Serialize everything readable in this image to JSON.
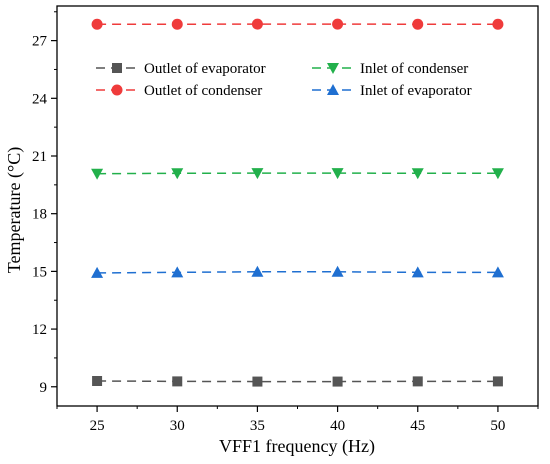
{
  "chart_data": {
    "type": "line",
    "title": "",
    "xlabel": "VFF1 frequency (Hz)",
    "ylabel": "Temperature (°C)",
    "x": [
      25,
      30,
      35,
      40,
      45,
      50
    ],
    "x_tick_labels": [
      "25",
      "30",
      "35",
      "40",
      "45",
      "50"
    ],
    "y_tick_labels": [
      "9",
      "12",
      "15",
      "18",
      "21",
      "24",
      "27"
    ],
    "y_ticks": [
      9,
      12,
      15,
      18,
      21,
      24,
      27
    ],
    "xlim": [
      22.5,
      52.5
    ],
    "ylim": [
      8,
      28.8
    ],
    "grid": false,
    "legend_position": "top",
    "series": [
      {
        "name": "Outlet of evaporator",
        "marker": "square",
        "color": "#555555",
        "values": [
          9.3,
          9.28,
          9.27,
          9.27,
          9.28,
          9.28
        ]
      },
      {
        "name": "Outlet of condenser",
        "marker": "circle",
        "color": "#ef3b3b",
        "values": [
          27.85,
          27.85,
          27.86,
          27.86,
          27.85,
          27.85
        ]
      },
      {
        "name": "Inlet of condenser",
        "marker": "triangle-down",
        "color": "#22b04b",
        "values": [
          20.08,
          20.1,
          20.11,
          20.11,
          20.1,
          20.1
        ]
      },
      {
        "name": "Inlet of evaporator",
        "marker": "triangle-up",
        "color": "#1f6fd1",
        "values": [
          14.92,
          14.95,
          14.98,
          14.98,
          14.95,
          14.95
        ]
      }
    ]
  }
}
